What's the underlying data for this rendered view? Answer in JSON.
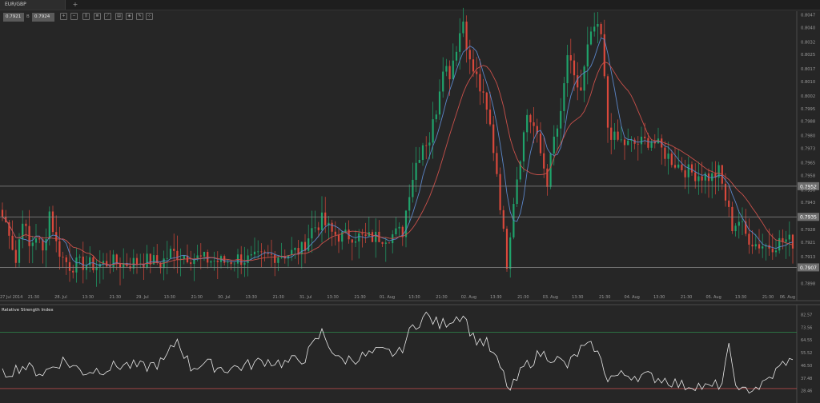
{
  "tab": {
    "label": "EUR/GBP",
    "add_label": "+"
  },
  "quote": {
    "bid": "0.7921",
    "sep": "B",
    "ask": "0.7924"
  },
  "toolbar_icons": [
    "zoom-in-icon",
    "zoom-out-icon",
    "candles-icon",
    "bars-icon",
    "line-icon",
    "settings-icon",
    "indicator-icon",
    "drawing-icon"
  ],
  "price_axis": [
    "0.8047",
    "0.8040",
    "0.8032",
    "0.8025",
    "0.8017",
    "0.8010",
    "0.8002",
    "0.7995",
    "0.7988",
    "0.7980",
    "0.7973",
    "0.7965",
    "0.7958",
    "0.7950",
    "0.7943",
    "0.7935",
    "0.7928",
    "0.7921",
    "0.7913",
    "0.7907",
    "0.7898"
  ],
  "price_levels": [
    "0.7952",
    "0.7935",
    "0.7907"
  ],
  "time_axis": [
    "27 Jul 2014",
    "21:30",
    "28. Jul",
    "13:30",
    "21:30",
    "29. Jul",
    "13:30",
    "21:30",
    "30. Jul",
    "13:30",
    "21:30",
    "31. Jul",
    "13:30",
    "21:30",
    "01. Aug",
    "13:30",
    "21:30",
    "02. Aug",
    "13:30",
    "21:30",
    "03. Aug",
    "13:30",
    "21:30",
    "04. Aug",
    "13:30",
    "21:30",
    "05. Aug",
    "13:30",
    "21:30",
    "06. Aug"
  ],
  "rsi": {
    "title": "Relative Strength Index",
    "axis": [
      "82.57",
      "73.56",
      "64.55",
      "55.52",
      "46.50",
      "37.48",
      "28.46"
    ],
    "upper": 70,
    "lower": 30
  },
  "colors": {
    "background": "#262626",
    "bull": "#1fa36b",
    "bear": "#d9483b",
    "ma_fast": "#5b86c8",
    "ma_slow": "#c8504a",
    "rsi_line": "#e8e8e8",
    "rsi_upper": "#2f8a4d",
    "rsi_lower": "#b24a4a"
  },
  "chart_data": {
    "type": "candlestick",
    "ylim": [
      0.7893,
      0.8049
    ],
    "close_path": [
      [
        0,
        0.7935
      ],
      [
        2,
        0.7928
      ],
      [
        4,
        0.791
      ],
      [
        6,
        0.7935
      ],
      [
        8,
        0.7918
      ],
      [
        10,
        0.7925
      ],
      [
        12,
        0.7915
      ],
      [
        14,
        0.7938
      ],
      [
        16,
        0.792
      ],
      [
        18,
        0.7912
      ],
      [
        20,
        0.7908
      ],
      [
        24,
        0.7909
      ],
      [
        28,
        0.7908
      ],
      [
        32,
        0.791
      ],
      [
        36,
        0.7909
      ],
      [
        40,
        0.791
      ],
      [
        44,
        0.7911
      ],
      [
        47,
        0.7909
      ],
      [
        50,
        0.7915
      ],
      [
        54,
        0.7914
      ],
      [
        58,
        0.7912
      ],
      [
        62,
        0.7911
      ],
      [
        66,
        0.791
      ],
      [
        70,
        0.7912
      ],
      [
        74,
        0.7911
      ],
      [
        78,
        0.7913
      ],
      [
        82,
        0.7914
      ],
      [
        86,
        0.7915
      ],
      [
        89,
        0.7917
      ],
      [
        92,
        0.7928
      ],
      [
        95,
        0.7933
      ],
      [
        98,
        0.7926
      ],
      [
        101,
        0.7924
      ],
      [
        104,
        0.7925
      ],
      [
        108,
        0.7923
      ],
      [
        112,
        0.7924
      ],
      [
        116,
        0.7925
      ],
      [
        119,
        0.7927
      ],
      [
        121,
        0.795
      ],
      [
        123,
        0.7965
      ],
      [
        125,
        0.7976
      ],
      [
        127,
        0.7978
      ],
      [
        129,
        0.7995
      ],
      [
        131,
        0.802
      ],
      [
        133,
        0.8015
      ],
      [
        135,
        0.803
      ],
      [
        137,
        0.8044
      ],
      [
        139,
        0.802
      ],
      [
        141,
        0.8012
      ],
      [
        143,
        0.8
      ],
      [
        145,
        0.7985
      ],
      [
        147,
        0.796
      ],
      [
        149,
        0.7925
      ],
      [
        150,
        0.791
      ],
      [
        152,
        0.7945
      ],
      [
        154,
        0.797
      ],
      [
        156,
        0.7992
      ],
      [
        158,
        0.7985
      ],
      [
        160,
        0.797
      ],
      [
        162,
        0.7955
      ],
      [
        164,
        0.7978
      ],
      [
        166,
        0.799
      ],
      [
        168,
        0.8025
      ],
      [
        170,
        0.801
      ],
      [
        172,
        0.8005
      ],
      [
        174,
        0.8028
      ],
      [
        176,
        0.804
      ],
      [
        178,
        0.8035
      ],
      [
        180,
        0.7985
      ],
      [
        182,
        0.7978
      ],
      [
        186,
        0.7975
      ],
      [
        190,
        0.7976
      ],
      [
        193,
        0.7978
      ],
      [
        196,
        0.7972
      ],
      [
        200,
        0.7965
      ],
      [
        204,
        0.796
      ],
      [
        208,
        0.7958
      ],
      [
        211,
        0.7957
      ],
      [
        213,
        0.796
      ],
      [
        215,
        0.7945
      ],
      [
        217,
        0.793
      ],
      [
        219,
        0.7933
      ],
      [
        221,
        0.7925
      ],
      [
        224,
        0.792
      ],
      [
        228,
        0.7919
      ],
      [
        231,
        0.7921
      ],
      [
        233,
        0.7922
      ],
      [
        235,
        0.7921
      ]
    ],
    "rsi_path": [
      [
        0,
        40
      ],
      [
        6,
        46
      ],
      [
        12,
        41
      ],
      [
        18,
        50
      ],
      [
        24,
        42
      ],
      [
        30,
        44
      ],
      [
        36,
        47
      ],
      [
        42,
        45
      ],
      [
        48,
        49
      ],
      [
        52,
        65
      ],
      [
        56,
        45
      ],
      [
        60,
        48
      ],
      [
        66,
        44
      ],
      [
        72,
        46
      ],
      [
        78,
        50
      ],
      [
        84,
        48
      ],
      [
        90,
        52
      ],
      [
        95,
        70
      ],
      [
        100,
        50
      ],
      [
        106,
        52
      ],
      [
        112,
        56
      ],
      [
        118,
        55
      ],
      [
        122,
        74
      ],
      [
        126,
        82
      ],
      [
        130,
        75
      ],
      [
        134,
        80
      ],
      [
        137,
        83
      ],
      [
        140,
        66
      ],
      [
        144,
        62
      ],
      [
        148,
        45
      ],
      [
        151,
        28
      ],
      [
        155,
        45
      ],
      [
        160,
        55
      ],
      [
        164,
        52
      ],
      [
        168,
        46
      ],
      [
        172,
        58
      ],
      [
        176,
        60
      ],
      [
        180,
        38
      ],
      [
        186,
        40
      ],
      [
        190,
        39
      ],
      [
        194,
        38
      ],
      [
        198,
        36
      ],
      [
        202,
        32
      ],
      [
        206,
        33
      ],
      [
        210,
        30
      ],
      [
        214,
        34
      ],
      [
        216,
        58
      ],
      [
        219,
        26
      ],
      [
        222,
        30
      ],
      [
        226,
        32
      ],
      [
        230,
        42
      ],
      [
        233,
        50
      ],
      [
        235,
        48
      ]
    ]
  }
}
